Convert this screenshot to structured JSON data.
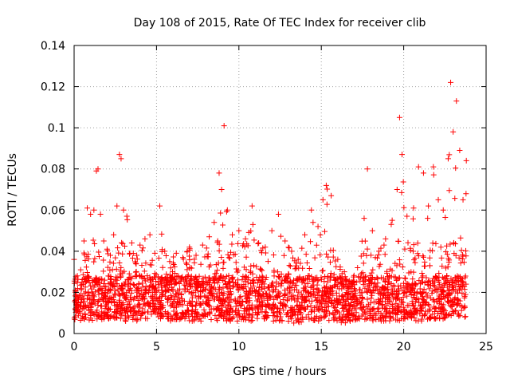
{
  "chart_data": {
    "type": "scatter",
    "title": "Day 108 of 2015, Rate Of TEC Index for receiver clib",
    "xlabel": "GPS time / hours",
    "ylabel": "ROTI / TECUs",
    "xlim": [
      0,
      25
    ],
    "ylim": [
      0,
      0.14
    ],
    "xticks": [
      0,
      5,
      10,
      15,
      20,
      25
    ],
    "xtick_labels": [
      "0",
      "5",
      "10",
      "15",
      "20",
      "25"
    ],
    "yticks": [
      0,
      0.02,
      0.04,
      0.06,
      0.08,
      0.1,
      0.12,
      0.14
    ],
    "ytick_labels": [
      "0",
      "0.02",
      "0.04",
      "0.06",
      "0.08",
      "0.1",
      "0.12",
      "0.14"
    ],
    "grid": true,
    "marker": "plus",
    "color": "#ff0000",
    "series": [
      {
        "name": "ROTI",
        "x": [
          0.0,
          0.2,
          0.4,
          0.6,
          0.8,
          1.0,
          1.2,
          1.35,
          1.45,
          1.6,
          1.8,
          2.0,
          2.2,
          2.4,
          2.6,
          2.75,
          2.85,
          3.0,
          3.2,
          3.5,
          3.8,
          4.0,
          4.3,
          4.6,
          4.9,
          5.2,
          5.5,
          5.8,
          6.2,
          6.6,
          7.0,
          7.4,
          7.8,
          8.2,
          8.5,
          8.8,
          8.95,
          9.1,
          9.3,
          9.6,
          10.0,
          10.4,
          10.8,
          11.2,
          11.6,
          12.0,
          12.4,
          12.8,
          13.2,
          13.6,
          14.0,
          14.4,
          14.8,
          15.1,
          15.3,
          15.6,
          16.0,
          16.4,
          16.8,
          17.2,
          17.6,
          17.8,
          18.1,
          18.5,
          18.9,
          19.3,
          19.6,
          19.75,
          19.9,
          20.2,
          20.6,
          20.9,
          21.2,
          21.5,
          21.8,
          22.1,
          22.4,
          22.7,
          22.85,
          23.0,
          23.2,
          23.4,
          23.6,
          23.8
        ],
        "y": [
          0.036,
          0.028,
          0.031,
          0.045,
          0.061,
          0.058,
          0.06,
          0.079,
          0.08,
          0.058,
          0.045,
          0.041,
          0.038,
          0.048,
          0.062,
          0.087,
          0.085,
          0.06,
          0.057,
          0.044,
          0.038,
          0.043,
          0.046,
          0.048,
          0.039,
          0.062,
          0.04,
          0.035,
          0.039,
          0.037,
          0.042,
          0.038,
          0.043,
          0.047,
          0.054,
          0.078,
          0.07,
          0.101,
          0.06,
          0.048,
          0.05,
          0.046,
          0.062,
          0.044,
          0.042,
          0.05,
          0.058,
          0.045,
          0.04,
          0.036,
          0.048,
          0.06,
          0.052,
          0.065,
          0.072,
          0.067,
          0.036,
          0.03,
          0.025,
          0.032,
          0.056,
          0.08,
          0.05,
          0.04,
          0.046,
          0.055,
          0.07,
          0.105,
          0.087,
          0.057,
          0.061,
          0.081,
          0.078,
          0.062,
          0.081,
          0.065,
          0.06,
          0.085,
          0.122,
          0.098,
          0.113,
          0.089,
          0.065,
          0.084
        ],
        "baseline_min": [
          0.006,
          0.007,
          0.006,
          0.006,
          0.007,
          0.006,
          0.006,
          0.007,
          0.006,
          0.006,
          0.007,
          0.006,
          0.006,
          0.007,
          0.006,
          0.006,
          0.007,
          0.006,
          0.006,
          0.006,
          0.006,
          0.007,
          0.006,
          0.006,
          0.006,
          0.007,
          0.006,
          0.006,
          0.006,
          0.007,
          0.006,
          0.006,
          0.006,
          0.007,
          0.006,
          0.006,
          0.006,
          0.007,
          0.006,
          0.006,
          0.006,
          0.006,
          0.006,
          0.007,
          0.006,
          0.006,
          0.006,
          0.006,
          0.005,
          0.005,
          0.006,
          0.006,
          0.006,
          0.006,
          0.005,
          0.005,
          0.005,
          0.005,
          0.005,
          0.006,
          0.006,
          0.006,
          0.006,
          0.006,
          0.006,
          0.006,
          0.006,
          0.006,
          0.007,
          0.007,
          0.006,
          0.006,
          0.006,
          0.007,
          0.007,
          0.007,
          0.007,
          0.008,
          0.008,
          0.008,
          0.008,
          0.008,
          0.008,
          0.008
        ]
      }
    ]
  }
}
